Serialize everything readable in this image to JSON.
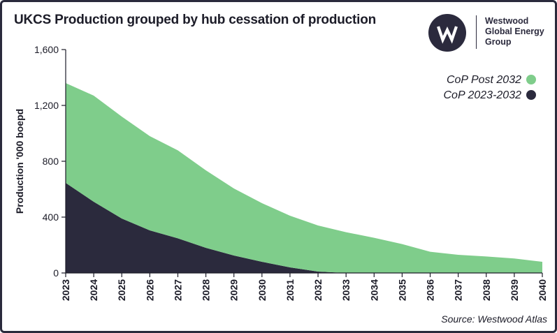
{
  "title": "UKCS Production grouped by hub cessation of production",
  "brand": {
    "line1": "Westwood",
    "line2": "Global Energy",
    "line3": "Group",
    "logo_icon": "westwood-w-logo-icon"
  },
  "source": "Source: Westwood Atlas",
  "colors": {
    "post2032": "#7fcd8b",
    "early": "#2b2a3d",
    "axis": "#1c1c28",
    "text": "#1c1c28"
  },
  "chart_data": {
    "type": "area",
    "stacked": true,
    "title": "UKCS Production grouped by hub cessation of production",
    "xlabel": "",
    "ylabel": "Production '000 boepd",
    "categories": [
      "2023",
      "2024",
      "2025",
      "2026",
      "2027",
      "2028",
      "2029",
      "2030",
      "2031",
      "2032",
      "2033",
      "2034",
      "2035",
      "2036",
      "2037",
      "2038",
      "2039",
      "2040"
    ],
    "series": [
      {
        "name": "CoP 2023-2032",
        "color": "#2b2a3d",
        "values": [
          645,
          510,
          390,
          305,
          248,
          180,
          125,
          80,
          40,
          10,
          0,
          0,
          0,
          0,
          0,
          0,
          0,
          0
        ]
      },
      {
        "name": "CoP Post 2032",
        "color": "#7fcd8b",
        "values": [
          715,
          760,
          730,
          675,
          630,
          555,
          480,
          420,
          370,
          330,
          292,
          252,
          207,
          152,
          130,
          118,
          104,
          80
        ]
      }
    ],
    "yticks": [
      "0",
      "400",
      "800",
      "1,200",
      "1,600"
    ],
    "ylim": [
      0,
      1600
    ],
    "legend": [
      {
        "label": "CoP Post 2032",
        "color": "#7fcd8b"
      },
      {
        "label": "CoP 2023-2032",
        "color": "#2b2a3d"
      }
    ],
    "legend_position": "top-right"
  }
}
